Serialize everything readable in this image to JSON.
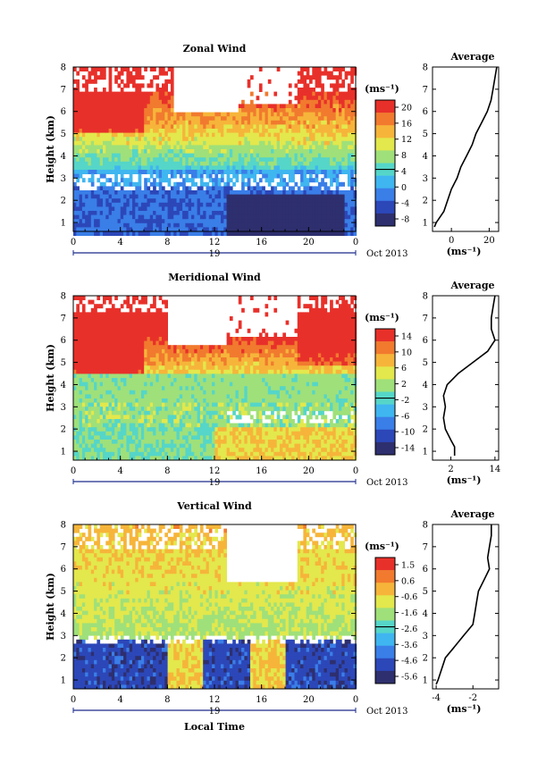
{
  "chart_data": [
    {
      "type": "heatmap",
      "title": "Zonal Wind",
      "ylabel": "Height (km)",
      "ylim": [
        0.6,
        8
      ],
      "yticks": [
        1,
        2,
        3,
        4,
        5,
        6,
        7,
        8
      ],
      "xticks": [
        "0",
        "4",
        "8",
        "12",
        "16",
        "20",
        "0"
      ],
      "date_day": "19",
      "date_month": "Oct 2013",
      "colorbar": {
        "unit": "(ms⁻¹)",
        "labels": [
          "20",
          "16",
          "12",
          "8",
          "4",
          "0",
          "-4",
          "-8"
        ]
      },
      "profile": {
        "title": "Average",
        "xlabel": "(ms⁻¹)",
        "xticks": [
          "0",
          "20"
        ],
        "xlim": [
          -10,
          25
        ],
        "heights": [
          0.8,
          1.0,
          1.5,
          2.0,
          2.5,
          3.0,
          3.5,
          4.0,
          4.5,
          5.0,
          5.5,
          6.0,
          6.5,
          7.0,
          7.5,
          8.0
        ],
        "values": [
          -9,
          -8,
          -4,
          -2,
          0,
          3,
          5,
          8,
          11,
          13,
          16,
          19,
          21,
          22,
          23,
          24
        ]
      }
    },
    {
      "type": "heatmap",
      "title": "Meridional Wind",
      "ylabel": "Height (km)",
      "ylim": [
        0.6,
        8
      ],
      "yticks": [
        1,
        2,
        3,
        4,
        5,
        6,
        7,
        8
      ],
      "xticks": [
        "0",
        "4",
        "8",
        "12",
        "16",
        "20",
        "0"
      ],
      "date_day": "19",
      "date_month": "Oct 2013",
      "colorbar": {
        "unit": "(ms⁻¹)",
        "labels": [
          "14",
          "10",
          "6",
          "2",
          "-2",
          "-6",
          "-10",
          "-14"
        ]
      },
      "profile": {
        "title": "Average",
        "xlabel": "(ms⁻¹)",
        "xticks": [
          "2",
          "14"
        ],
        "xlim": [
          -3,
          15
        ],
        "heights": [
          0.8,
          1.2,
          1.5,
          2.0,
          2.5,
          3.0,
          3.5,
          4.0,
          4.5,
          5.0,
          5.5,
          6.0,
          6.5,
          7.0,
          7.5,
          8.0
        ],
        "values": [
          3,
          3,
          2,
          0.5,
          0,
          0.5,
          0,
          1,
          4,
          8,
          12,
          14,
          13,
          13,
          13.5,
          14
        ]
      }
    },
    {
      "type": "heatmap",
      "title": "Vertical Wind",
      "ylabel": "Height (km)",
      "ylim": [
        0.6,
        8
      ],
      "yticks": [
        1,
        2,
        3,
        4,
        5,
        6,
        7,
        8
      ],
      "xticks": [
        "0",
        "4",
        "8",
        "12",
        "16",
        "20",
        "0"
      ],
      "date_day": "19",
      "date_month": "Oct 2013",
      "xlabel": "Local Time",
      "colorbar": {
        "unit": "(ms⁻¹)",
        "labels": [
          "1.5",
          "0.6",
          "-0.6",
          "-1.6",
          "-2.6",
          "-3.6",
          "-4.6",
          "-5.6"
        ]
      },
      "profile": {
        "title": "Average",
        "xlabel": "(ms⁻¹)",
        "xticks": [
          "-4",
          "-2"
        ],
        "xlim": [
          -4.2,
          -0.6
        ],
        "heights": [
          0.8,
          1.0,
          1.5,
          2.0,
          2.5,
          3.0,
          3.5,
          4.0,
          4.5,
          5.0,
          5.5,
          6.0,
          6.5,
          7.0,
          7.5,
          8.0
        ],
        "values": [
          -4.0,
          -3.9,
          -3.7,
          -3.5,
          -3.0,
          -2.5,
          -2.0,
          -1.9,
          -1.8,
          -1.7,
          -1.4,
          -1.1,
          -1.2,
          -1.1,
          -1.0,
          -1.0
        ]
      }
    }
  ],
  "colors": {
    "scale": [
      "#2e2f6e",
      "#2c47b8",
      "#3a7ee8",
      "#3fb6f0",
      "#55d6c8",
      "#9fe07a",
      "#e3e84c",
      "#f6b53a",
      "#f17a2e",
      "#e8302a"
    ]
  }
}
